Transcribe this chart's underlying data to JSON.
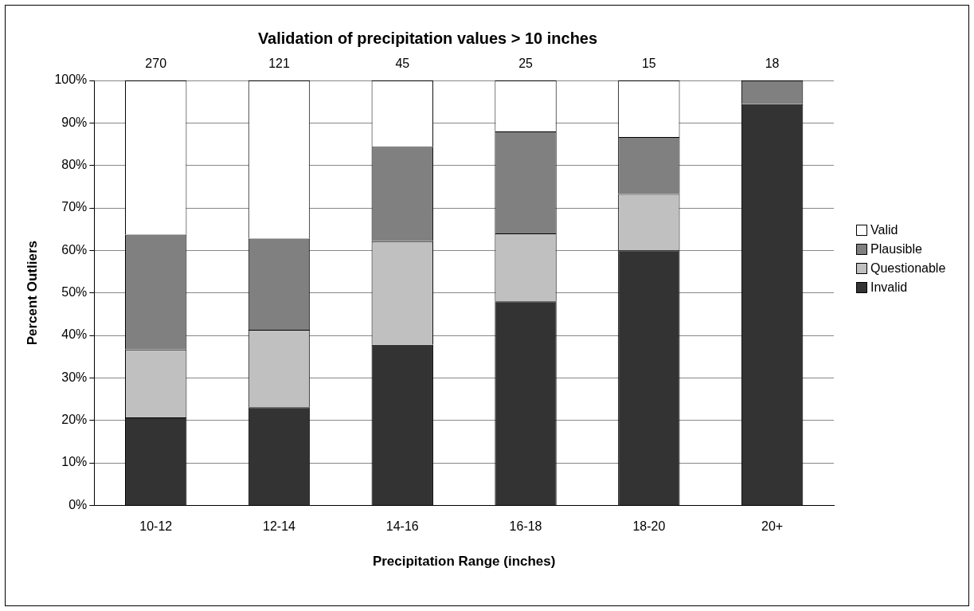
{
  "chart_data": {
    "type": "bar",
    "stacked": true,
    "title": "Validation of precipitation values > 10 inches",
    "xlabel": "Precipitation Range (inches)",
    "ylabel": "Percent Outliers",
    "categories": [
      "10-12",
      "12-14",
      "14-16",
      "16-18",
      "18-20",
      "20+"
    ],
    "series": [
      {
        "name": "Invalid",
        "color": "#333333",
        "values": [
          20.7,
          23.1,
          37.8,
          48,
          60,
          94.4
        ]
      },
      {
        "name": "Questionable",
        "color": "#c0c0c0",
        "values": [
          16.0,
          18.2,
          24.4,
          16,
          13.3,
          0
        ]
      },
      {
        "name": "Plausible",
        "color": "#808080",
        "values": [
          27.0,
          21.5,
          22.2,
          24,
          13.4,
          5.6
        ]
      },
      {
        "name": "Valid",
        "color": "#ffffff",
        "values": [
          36.3,
          37.2,
          15.6,
          12,
          13.3,
          0
        ]
      }
    ],
    "annotations": [
      {
        "text": "270",
        "x": "10-12",
        "y": 100
      },
      {
        "text": "121",
        "x": "12-14",
        "y": 100
      },
      {
        "text": "45",
        "x": "14-16",
        "y": 100
      },
      {
        "text": "25",
        "x": "16-18",
        "y": 100
      },
      {
        "text": "15",
        "x": "18-20",
        "y": 100
      },
      {
        "text": "18",
        "x": "20+",
        "y": 100
      }
    ],
    "ylim": [
      0,
      100
    ],
    "yticks": [
      {
        "value": 0,
        "label": "0%"
      },
      {
        "value": 10,
        "label": "10%"
      },
      {
        "value": 20,
        "label": "20%"
      },
      {
        "value": 30,
        "label": "30%"
      },
      {
        "value": 40,
        "label": "40%"
      },
      {
        "value": 50,
        "label": "50%"
      },
      {
        "value": 60,
        "label": "60%"
      },
      {
        "value": 70,
        "label": "70%"
      },
      {
        "value": 80,
        "label": "80%"
      },
      {
        "value": 90,
        "label": "90%"
      },
      {
        "value": 100,
        "label": "100%"
      }
    ],
    "grid": "y",
    "legend": "right"
  }
}
